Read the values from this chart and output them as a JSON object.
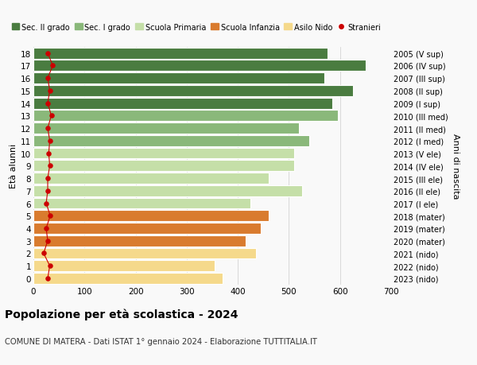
{
  "ages": [
    0,
    1,
    2,
    3,
    4,
    5,
    6,
    7,
    8,
    9,
    10,
    11,
    12,
    13,
    14,
    15,
    16,
    17,
    18
  ],
  "years": [
    "2023 (nido)",
    "2022 (nido)",
    "2021 (nido)",
    "2020 (mater)",
    "2019 (mater)",
    "2018 (mater)",
    "2017 (I ele)",
    "2016 (II ele)",
    "2015 (III ele)",
    "2014 (IV ele)",
    "2013 (V ele)",
    "2012 (I med)",
    "2011 (II med)",
    "2010 (III med)",
    "2009 (I sup)",
    "2008 (II sup)",
    "2007 (III sup)",
    "2006 (IV sup)",
    "2005 (V sup)"
  ],
  "values": [
    370,
    355,
    435,
    415,
    445,
    460,
    425,
    525,
    460,
    510,
    510,
    540,
    520,
    595,
    585,
    625,
    570,
    650,
    575
  ],
  "stranieri": [
    28,
    32,
    20,
    28,
    25,
    33,
    25,
    28,
    28,
    32,
    30,
    32,
    28,
    35,
    28,
    32,
    28,
    38,
    28
  ],
  "colors": {
    "sec2": "#4a7c40",
    "sec1": "#8ab87a",
    "primaria": "#c5dfa8",
    "infanzia": "#d97b2e",
    "nido": "#f5d98b"
  },
  "bar_colors": [
    "#f5d98b",
    "#f5d98b",
    "#f5d98b",
    "#d97b2e",
    "#d97b2e",
    "#d97b2e",
    "#c5dfa8",
    "#c5dfa8",
    "#c5dfa8",
    "#c5dfa8",
    "#c5dfa8",
    "#8ab87a",
    "#8ab87a",
    "#8ab87a",
    "#4a7c40",
    "#4a7c40",
    "#4a7c40",
    "#4a7c40",
    "#4a7c40"
  ],
  "title1": "Popolazione per età scolastica - 2024",
  "title2": "COMUNE DI MATERA - Dati ISTAT 1° gennaio 2024 - Elaborazione TUTTITALIA.IT",
  "ylabel_left": "Età alunni",
  "ylabel_right": "Anni di nascita",
  "xlim": [
    0,
    700
  ],
  "background_color": "#f9f9f9",
  "grid_color": "#cccccc",
  "stranieri_color": "#cc0000",
  "legend_labels": [
    "Sec. II grado",
    "Sec. I grado",
    "Scuola Primaria",
    "Scuola Infanzia",
    "Asilo Nido",
    "Stranieri"
  ]
}
